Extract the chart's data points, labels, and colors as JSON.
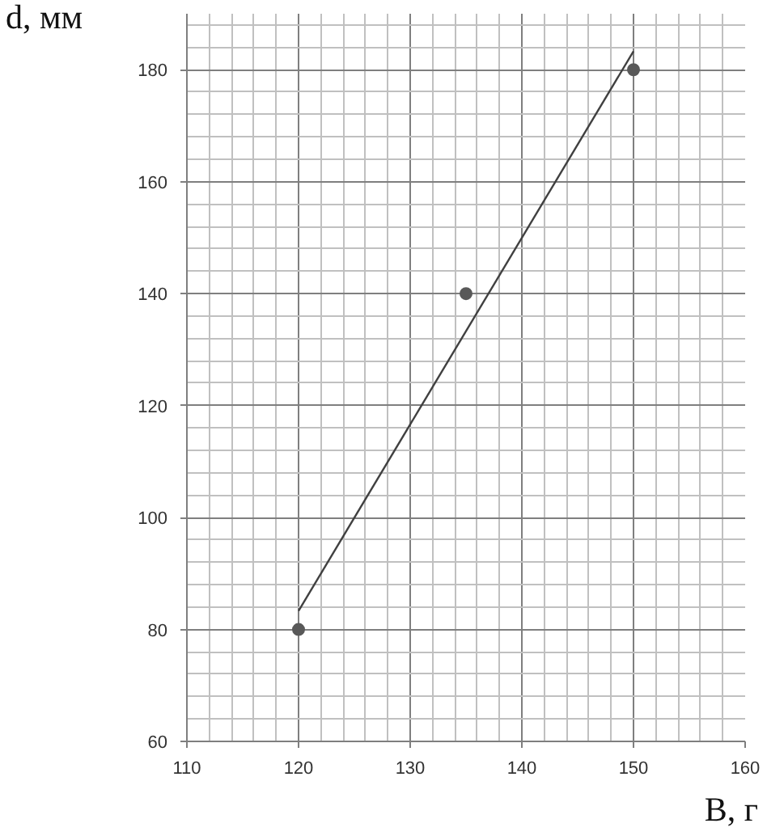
{
  "chart_data": {
    "type": "scatter",
    "xlabel": "B, г",
    "ylabel": "d, мм",
    "x": [
      120,
      135,
      150
    ],
    "series": [
      {
        "color": "#595959",
        "values": [
          80,
          140,
          180
        ],
        "marker": "circle"
      },
      {
        "type": "line",
        "color": "#404040",
        "x": [
          120,
          150
        ],
        "values": [
          83.3,
          183.3
        ],
        "marker": "none"
      }
    ],
    "xlim": [
      110,
      160
    ],
    "ylim": [
      60,
      190
    ],
    "xticks": [
      110,
      120,
      130,
      140,
      150,
      160
    ],
    "yticks": [
      60,
      80,
      100,
      120,
      140,
      160,
      180
    ],
    "grid": true
  }
}
